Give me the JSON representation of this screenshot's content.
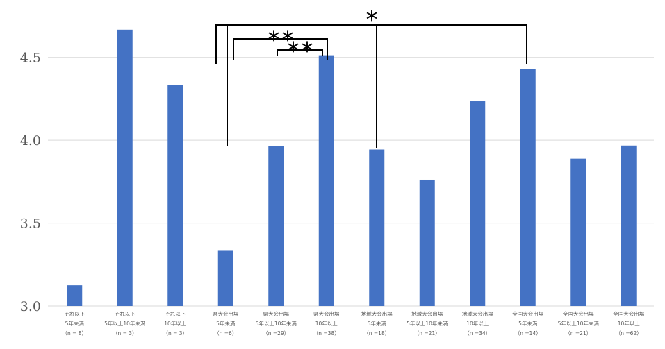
{
  "chart_data": {
    "type": "bar",
    "title": "",
    "xlabel": "",
    "ylabel": "",
    "ylim": [
      3.0,
      4.75
    ],
    "yticks": [
      "3.0",
      "3.5",
      "4.0",
      "4.5"
    ],
    "grid": true,
    "bar_color": "#4472C4",
    "categories": [
      [
        "それ以下",
        "5年未満",
        "（n = 8）"
      ],
      [
        "それ以下",
        "5年以上10年未満",
        "（n = 3）"
      ],
      [
        "それ以下",
        "10年以上",
        "（n = 3）"
      ],
      [
        "県大会出場",
        "5年未満",
        "（n =6）"
      ],
      [
        "県大会出場",
        "5年以上10年未満",
        "（n =29）"
      ],
      [
        "県大会出場",
        "10年以上",
        "（n =38）"
      ],
      [
        "地域大会出場",
        "5年未満",
        "（n =18）"
      ],
      [
        "地域大会出場",
        "5年以上10年未満",
        "（n =21）"
      ],
      [
        "地域大会出場",
        "10年以上",
        "（n =34）"
      ],
      [
        "全国大会出場",
        "5年未満",
        "（n =14）"
      ],
      [
        "全国大会出場",
        "5年以上10年未満",
        "（n =21）"
      ],
      [
        "全国大会出場",
        "10年以上",
        "（n =62）"
      ]
    ],
    "values": [
      3.125,
      4.667,
      4.333,
      3.333,
      3.966,
      4.513,
      3.944,
      3.762,
      4.235,
      4.429,
      3.889,
      3.968
    ],
    "significance": [
      {
        "from": 3,
        "to": 9,
        "label": "＊"
      },
      {
        "from": 3,
        "to": 5,
        "label": "＊＊"
      },
      {
        "from": 4,
        "to": 5,
        "label": "＊＊"
      }
    ]
  }
}
